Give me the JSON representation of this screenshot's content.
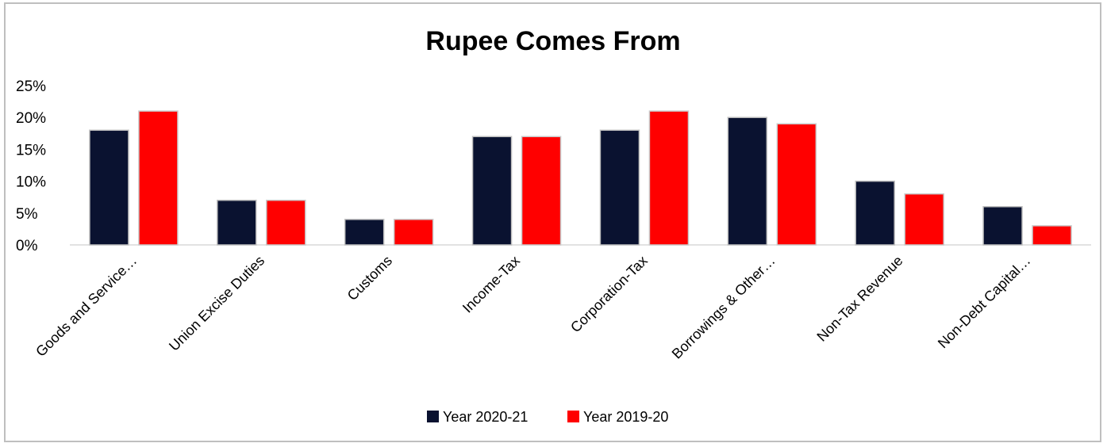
{
  "chart_data": {
    "type": "bar",
    "title": "Rupee Comes From",
    "categories": [
      "Goods and Service…",
      "Union Excise Duties",
      "Customs",
      "Income-Tax",
      "Corporation-Tax",
      "Borrowings & Other…",
      "Non-Tax Revenue",
      "Non-Debt Capital…"
    ],
    "series": [
      {
        "name": "Year 2020-21",
        "color": "#0a1230",
        "values": [
          18,
          7,
          4,
          17,
          18,
          20,
          10,
          6
        ]
      },
      {
        "name": "Year 2019-20",
        "color": "#ff0000",
        "values": [
          21,
          7,
          4,
          17,
          21,
          19,
          8,
          3
        ]
      }
    ],
    "y_ticks": [
      "0%",
      "5%",
      "10%",
      "15%",
      "20%",
      "25%"
    ],
    "ylim": [
      0,
      25
    ],
    "grid": false,
    "legend_position": "bottom"
  }
}
